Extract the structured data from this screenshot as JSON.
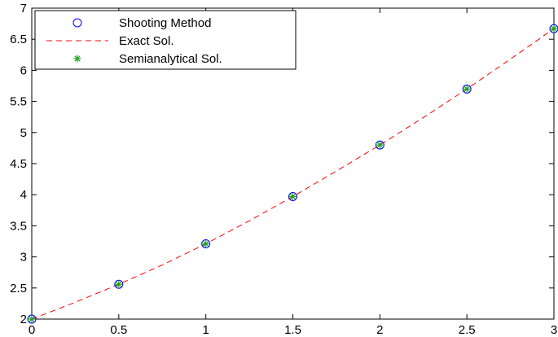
{
  "chart_data": {
    "type": "line",
    "title": "",
    "xlabel": "",
    "ylabel": "",
    "xlim": [
      0,
      3
    ],
    "ylim": [
      2,
      7
    ],
    "xticks": [
      "0",
      "0.5",
      "1",
      "1.5",
      "2",
      "2.5",
      "3"
    ],
    "yticks": [
      "2",
      "2.5",
      "3",
      "3.5",
      "4",
      "4.5",
      "5",
      "5.5",
      "6",
      "6.5",
      "7"
    ],
    "grid": false,
    "legend_position": "top-left",
    "series": [
      {
        "name": "Shooting Method",
        "style": "markers-circle",
        "color": "#0000ff",
        "x": [
          0,
          0.5,
          1,
          1.5,
          2,
          2.5,
          3
        ],
        "y": [
          2.0,
          2.56,
          3.21,
          3.97,
          4.8,
          5.7,
          6.67
        ]
      },
      {
        "name": "Exact Sol.",
        "style": "dashed-line",
        "color": "#ff0000",
        "x": [
          0,
          0.25,
          0.5,
          0.75,
          1,
          1.25,
          1.5,
          1.75,
          2,
          2.25,
          2.5,
          2.75,
          3
        ],
        "y": [
          2.0,
          2.27,
          2.56,
          2.87,
          3.21,
          3.58,
          3.97,
          4.38,
          4.8,
          5.24,
          5.7,
          6.18,
          6.67
        ]
      },
      {
        "name": "Semianalytical Sol.",
        "style": "markers-asterisk",
        "color": "#1fa31f",
        "x": [
          0,
          0.5,
          1,
          1.5,
          2,
          2.5,
          3
        ],
        "y": [
          2.0,
          2.56,
          3.21,
          3.97,
          4.8,
          5.7,
          6.67
        ]
      }
    ]
  }
}
